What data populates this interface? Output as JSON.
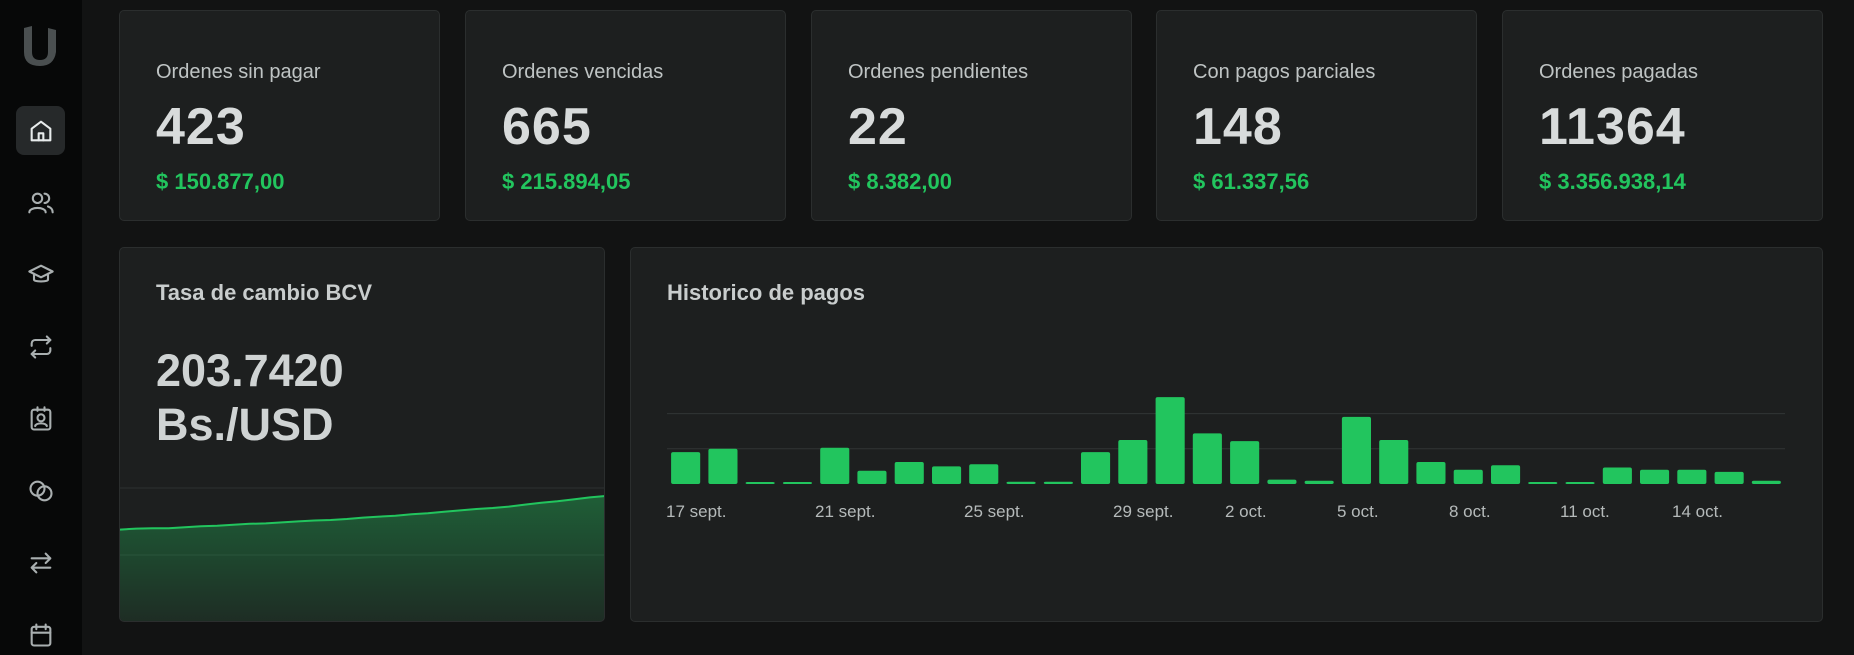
{
  "nav": {
    "items": [
      "home",
      "users",
      "courses",
      "transactions",
      "contacts",
      "payments",
      "transfers",
      "calendar"
    ],
    "active": "home"
  },
  "stats": [
    {
      "label": "Ordenes sin pagar",
      "count": "423",
      "amount": "$ 150.877,00"
    },
    {
      "label": "Ordenes vencidas",
      "count": "665",
      "amount": "$ 215.894,05"
    },
    {
      "label": "Ordenes pendientes",
      "count": "22",
      "amount": "$ 8.382,00"
    },
    {
      "label": "Con pagos parciales",
      "count": "148",
      "amount": "$ 61.337,56"
    },
    {
      "label": "Ordenes pagadas",
      "count": "11364",
      "amount": "$ 3.356.938,14"
    }
  ],
  "rate": {
    "title": "Tasa de cambio BCV",
    "value": "203.7420",
    "unit": "Bs./USD",
    "trend": [
      0.3,
      0.32,
      0.33,
      0.33,
      0.35,
      0.37,
      0.38,
      0.4,
      0.42,
      0.43,
      0.45,
      0.47,
      0.49,
      0.5,
      0.52,
      0.55,
      0.57,
      0.59,
      0.62,
      0.64,
      0.67,
      0.7,
      0.73,
      0.75,
      0.78,
      0.82,
      0.86,
      0.89,
      0.93,
      0.97,
      1.0
    ]
  },
  "colors": {
    "accent": "#22c55e",
    "card": "#1d1f1f",
    "background": "#121313"
  },
  "chart_data": {
    "type": "bar",
    "title": "Historico de pagos",
    "x_tick_labels": [
      "17 sept.",
      "21 sept.",
      "25 sept.",
      "29 sept.",
      "2 oct.",
      "5 oct.",
      "8 oct.",
      "11 oct.",
      "14 oct."
    ],
    "values": [
      29,
      32,
      1,
      1,
      33,
      12,
      20,
      16,
      18,
      2,
      2,
      29,
      40,
      79,
      46,
      39,
      4,
      3,
      61,
      40,
      20,
      13,
      17,
      1,
      1,
      15,
      13,
      13,
      11,
      3
    ],
    "ylim": [
      0,
      100
    ],
    "grid": true,
    "legend": "none"
  }
}
